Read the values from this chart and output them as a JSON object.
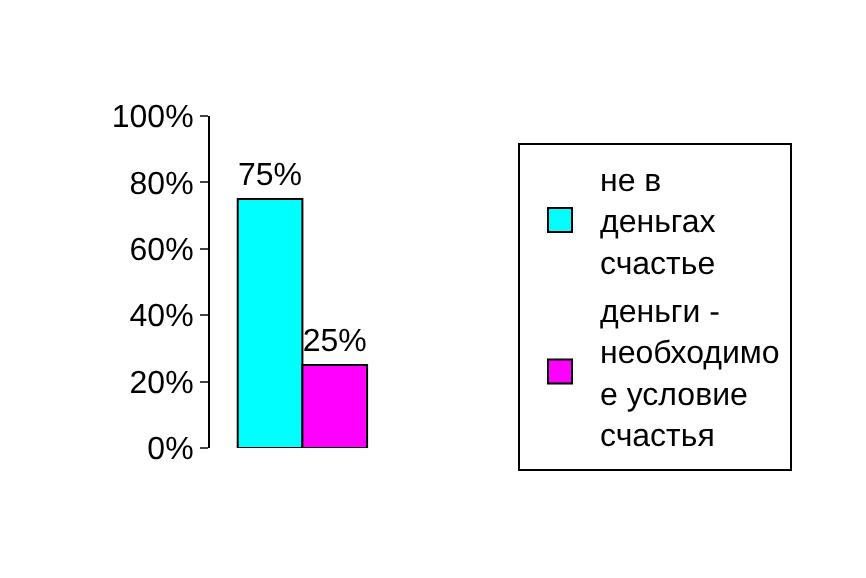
{
  "chart_data": {
    "type": "bar",
    "categories": [
      null
    ],
    "series": [
      {
        "name": "не в деньгах счастье",
        "color": "#00ffff",
        "values": [
          75
        ],
        "value_labels": [
          "75%"
        ]
      },
      {
        "name": "деньги - необходимое условие счастья",
        "color": "#ff00ff",
        "values": [
          25
        ],
        "value_labels": [
          "25%"
        ]
      }
    ],
    "ylim": [
      0,
      100
    ],
    "yticks": [
      {
        "value": 0,
        "label": "0%"
      },
      {
        "value": 20,
        "label": "20%"
      },
      {
        "value": 40,
        "label": "40%"
      },
      {
        "value": 60,
        "label": "60%"
      },
      {
        "value": 80,
        "label": "80%"
      },
      {
        "value": 100,
        "label": "100%"
      }
    ],
    "grid": false,
    "legend": "right"
  }
}
